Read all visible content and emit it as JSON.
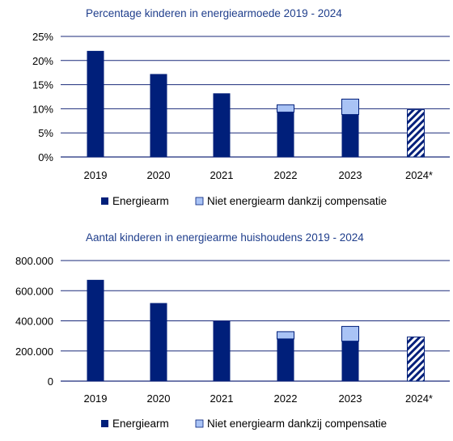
{
  "colors": {
    "energiearm": "#001f7a",
    "compensatie": "#a9c3f5",
    "compensatie_border": "#001f7a",
    "title": "#1f3e8c",
    "grid": "#1a2a7a"
  },
  "chart_data": [
    {
      "type": "bar",
      "stacked": true,
      "title": "Percentage kinderen in energiearmoede 2019 - 2024",
      "categories": [
        "2019",
        "2020",
        "2021",
        "2022",
        "2023",
        "2024*"
      ],
      "series": [
        {
          "name": "Energiearm",
          "values": [
            22.0,
            17.2,
            13.2,
            9.3,
            8.8,
            9.8
          ]
        },
        {
          "name": "Niet energiearm dankzij compensatie",
          "values": [
            0,
            0,
            0,
            1.5,
            3.2,
            0
          ]
        }
      ],
      "hatched_categories": [
        "2024*"
      ],
      "ylim": [
        0,
        25
      ],
      "yticks": [
        0,
        5,
        10,
        15,
        20,
        25
      ],
      "ytick_labels": [
        "0%",
        "5%",
        "10%",
        "15%",
        "20%",
        "25%"
      ],
      "grid": true,
      "legend_position": "bottom"
    },
    {
      "type": "bar",
      "stacked": true,
      "title": "Aantal kinderen in energiearme huishoudens 2019 - 2024",
      "categories": [
        "2019",
        "2020",
        "2021",
        "2022",
        "2023",
        "2024*"
      ],
      "series": [
        {
          "name": "Energiearm",
          "values": [
            672000,
            518000,
            400000,
            280000,
            265000,
            293000
          ]
        },
        {
          "name": "Niet energiearm dankzij compensatie",
          "values": [
            0,
            0,
            0,
            48000,
            98000,
            0
          ]
        }
      ],
      "hatched_categories": [
        "2024*"
      ],
      "ylim": [
        0,
        800000
      ],
      "yticks": [
        0,
        200000,
        400000,
        600000,
        800000
      ],
      "ytick_labels": [
        "0",
        "200.000",
        "400.000",
        "600.000",
        "800.000"
      ],
      "grid": true,
      "legend_position": "bottom"
    }
  ]
}
